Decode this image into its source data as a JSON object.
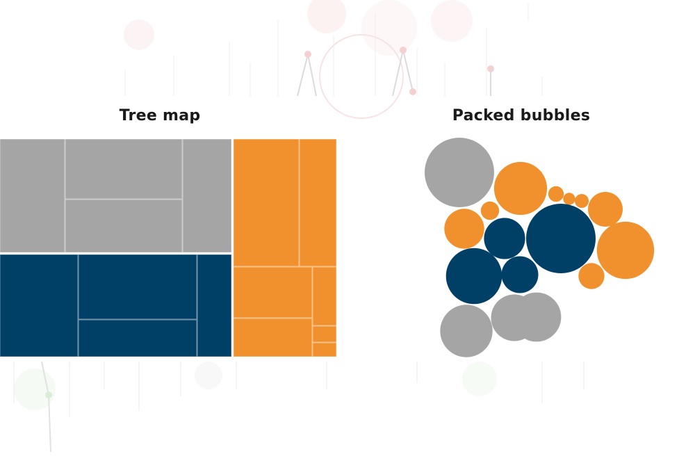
{
  "colors": {
    "gray": "#a5a5a5",
    "blue": "#003f66",
    "orange": "#f0912e",
    "background": "#ffffff",
    "decor_red": "#e98b8b",
    "decor_green": "#9ccf8e",
    "decor_gray": "#b8b8b8"
  },
  "titles": {
    "treemap": "Tree map",
    "bubbles": "Packed bubbles"
  },
  "chart_data": [
    {
      "type": "treemap",
      "title": "Tree map",
      "groups": [
        {
          "color": "gray",
          "values": [
            3,
            5,
            3,
            3
          ]
        },
        {
          "color": "blue",
          "values": [
            4,
            6,
            3,
            6,
            1
          ]
        },
        {
          "color": "orange",
          "values": [
            6,
            3,
            4,
            1,
            1,
            1,
            1
          ]
        }
      ]
    },
    {
      "type": "bubble",
      "title": "Packed bubbles",
      "bubbles": [
        {
          "color": "gray",
          "value": 100
        },
        {
          "color": "orange",
          "value": 58
        },
        {
          "color": "orange",
          "value": 33
        },
        {
          "color": "orange",
          "value": 7
        },
        {
          "color": "orange",
          "value": 25
        },
        {
          "color": "orange",
          "value": 5
        },
        {
          "color": "orange",
          "value": 3
        },
        {
          "color": "orange",
          "value": 4
        },
        {
          "color": "blue",
          "value": 35
        },
        {
          "color": "blue",
          "value": 100
        },
        {
          "color": "orange",
          "value": 68
        },
        {
          "color": "blue",
          "value": 65
        },
        {
          "color": "blue",
          "value": 28
        },
        {
          "color": "orange",
          "value": 14
        },
        {
          "color": "gray",
          "value": 50
        },
        {
          "color": "gray",
          "value": 57
        },
        {
          "color": "gray",
          "value": 45
        }
      ]
    }
  ]
}
